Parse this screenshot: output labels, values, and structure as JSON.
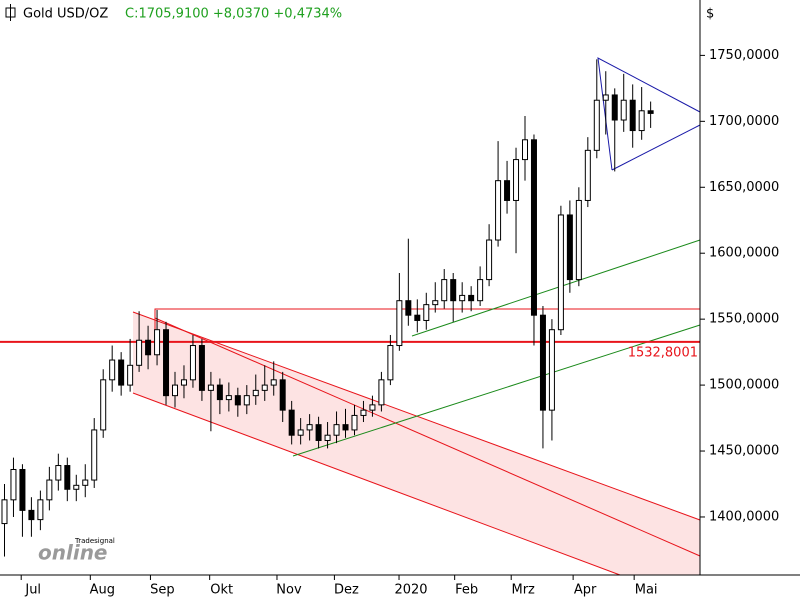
{
  "chart_data": {
    "type": "candlestick",
    "title": "Gold USD/OZ",
    "subtitle": "C:1705,9100 +8,0370 +0,4734%",
    "y_axis_label": "$",
    "watermark": {
      "brand": "Tradesignal",
      "logo": "online"
    },
    "ylim": [
      1356,
      1792
    ],
    "yticks": [
      {
        "value": 1400,
        "label": "1400,0000"
      },
      {
        "value": 1450,
        "label": "1450,0000"
      },
      {
        "value": 1500,
        "label": "1500,0000"
      },
      {
        "value": 1550,
        "label": "1550,0000"
      },
      {
        "value": 1600,
        "label": "1600,0000"
      },
      {
        "value": 1650,
        "label": "1650,0000"
      },
      {
        "value": 1700,
        "label": "1700,0000"
      },
      {
        "value": 1750,
        "label": "1750,0000"
      }
    ],
    "xlim": [
      0,
      78
    ],
    "xticks": [
      {
        "value": 3.7,
        "label": "Jul"
      },
      {
        "value": 11.4,
        "label": "Aug"
      },
      {
        "value": 18.1,
        "label": "Sep"
      },
      {
        "value": 24.7,
        "label": "Okt"
      },
      {
        "value": 32.2,
        "label": "Nov"
      },
      {
        "value": 38.6,
        "label": "Dez"
      },
      {
        "value": 45.8,
        "label": "2020"
      },
      {
        "value": 52,
        "label": "Feb"
      },
      {
        "value": 58.3,
        "label": "Mrz"
      },
      {
        "value": 65.2,
        "label": "Apr"
      },
      {
        "value": 72,
        "label": "Mai"
      }
    ],
    "reference_line": {
      "value": 1532.8001,
      "label": "1532,8001",
      "color": "#e8141b"
    },
    "up_color": "#ffffff",
    "down_color": "#000000",
    "series": {
      "open": [
        1395,
        1413,
        1436,
        1405,
        1398,
        1413,
        1428,
        1439,
        1421,
        1424,
        1428,
        1466,
        1504,
        1519,
        1500,
        1515,
        1534,
        1523,
        1542,
        1492,
        1500,
        1504,
        1530,
        1496,
        1500,
        1489,
        1492,
        1485,
        1492,
        1496,
        1500,
        1504,
        1481,
        1462,
        1466,
        1470,
        1458,
        1462,
        1470,
        1466,
        1477,
        1481,
        1485,
        1504,
        1530,
        1564,
        1553,
        1549,
        1561,
        1564,
        1580,
        1564,
        1568,
        1564,
        1580,
        1610,
        1655,
        1640,
        1671,
        1686,
        1553,
        1481,
        1542,
        1629,
        1580,
        1640,
        1678,
        1716,
        1720,
        1701,
        1716,
        1693,
        1708
      ],
      "high": [
        1425,
        1445,
        1440,
        1415,
        1420,
        1438,
        1448,
        1445,
        1432,
        1440,
        1475,
        1512,
        1530,
        1525,
        1535,
        1556,
        1545,
        1557,
        1548,
        1510,
        1515,
        1538,
        1535,
        1510,
        1505,
        1502,
        1498,
        1500,
        1508,
        1515,
        1518,
        1510,
        1488,
        1475,
        1478,
        1476,
        1472,
        1480,
        1482,
        1485,
        1488,
        1492,
        1510,
        1538,
        1585,
        1611,
        1565,
        1570,
        1578,
        1588,
        1585,
        1578,
        1575,
        1590,
        1622,
        1685,
        1670,
        1680,
        1704,
        1690,
        1560,
        1550,
        1636,
        1640,
        1650,
        1688,
        1747,
        1738,
        1725,
        1736,
        1728,
        1726,
        1715
      ],
      "low": [
        1370,
        1400,
        1385,
        1385,
        1390,
        1405,
        1420,
        1412,
        1412,
        1415,
        1422,
        1460,
        1495,
        1492,
        1495,
        1510,
        1512,
        1515,
        1485,
        1483,
        1490,
        1498,
        1488,
        1465,
        1478,
        1480,
        1476,
        1478,
        1485,
        1488,
        1492,
        1472,
        1455,
        1455,
        1458,
        1452,
        1452,
        1456,
        1460,
        1462,
        1472,
        1476,
        1480,
        1500,
        1526,
        1545,
        1540,
        1542,
        1555,
        1558,
        1548,
        1555,
        1556,
        1560,
        1575,
        1605,
        1630,
        1600,
        1655,
        1530,
        1452,
        1458,
        1538,
        1570,
        1575,
        1635,
        1672,
        1690,
        1662,
        1692,
        1680,
        1686,
        1695
      ],
      "close": [
        1413,
        1436,
        1405,
        1398,
        1413,
        1428,
        1439,
        1421,
        1424,
        1428,
        1466,
        1504,
        1519,
        1500,
        1515,
        1534,
        1523,
        1542,
        1492,
        1500,
        1504,
        1530,
        1496,
        1500,
        1489,
        1492,
        1485,
        1492,
        1496,
        1500,
        1504,
        1481,
        1462,
        1466,
        1470,
        1458,
        1462,
        1470,
        1466,
        1477,
        1481,
        1485,
        1504,
        1530,
        1564,
        1553,
        1549,
        1561,
        1564,
        1580,
        1564,
        1568,
        1564,
        1580,
        1610,
        1655,
        1640,
        1671,
        1686,
        1553,
        1481,
        1542,
        1629,
        1580,
        1640,
        1678,
        1716,
        1720,
        1701,
        1716,
        1693,
        1708,
        1706
      ]
    }
  }
}
